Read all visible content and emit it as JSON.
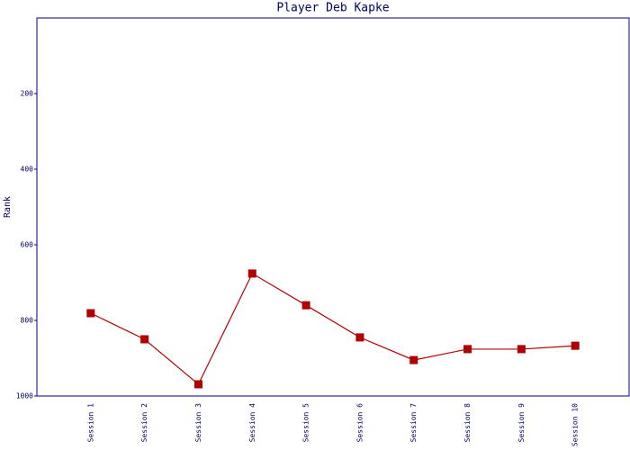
{
  "chart_data": {
    "type": "line",
    "title": "Player Deb Kapke",
    "y_label": "Rank",
    "categories": [
      "Session 1",
      "Session 2",
      "Session 3",
      "Session 4",
      "Session 5",
      "Session 6",
      "Session 7",
      "Session 8",
      "Session 9",
      "Session 10"
    ],
    "series": [
      {
        "name": "Rank",
        "color": "#b00000",
        "values": [
          781,
          850,
          969,
          676,
          760,
          845,
          905,
          876,
          876,
          867
        ]
      }
    ],
    "ylim": [
      0,
      1000
    ],
    "yticks": [
      200,
      400,
      600,
      800,
      1000
    ],
    "y_inverted": true,
    "grid": false
  }
}
